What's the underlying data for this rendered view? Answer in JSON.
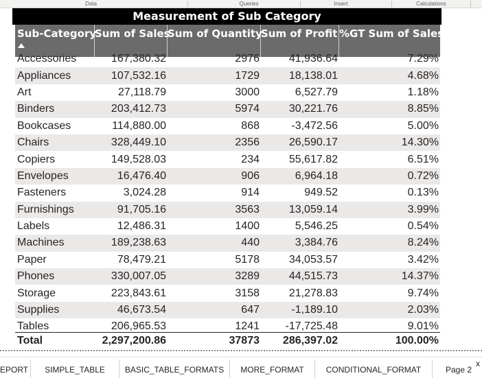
{
  "ribbon": {
    "groups": [
      {
        "label": "Data"
      },
      {
        "label": "Queries"
      },
      {
        "label": "Insert"
      },
      {
        "label": "Calculations"
      }
    ]
  },
  "table": {
    "title": "Measurement of Sub Category",
    "columns": [
      "Sub-Category",
      "Sum of Sales",
      "Sum of Quantity",
      "Sum of Profit",
      "%GT Sum of Sales"
    ],
    "sort_column": "Sub-Category",
    "sort_direction": "ascending",
    "rows": [
      [
        "Accessories",
        "167,380.32",
        "2976",
        "41,936.64",
        "7.29%"
      ],
      [
        "Appliances",
        "107,532.16",
        "1729",
        "18,138.01",
        "4.68%"
      ],
      [
        "Art",
        "27,118.79",
        "3000",
        "6,527.79",
        "1.18%"
      ],
      [
        "Binders",
        "203,412.73",
        "5974",
        "30,221.76",
        "8.85%"
      ],
      [
        "Bookcases",
        "114,880.00",
        "868",
        "-3,472.56",
        "5.00%"
      ],
      [
        "Chairs",
        "328,449.10",
        "2356",
        "26,590.17",
        "14.30%"
      ],
      [
        "Copiers",
        "149,528.03",
        "234",
        "55,617.82",
        "6.51%"
      ],
      [
        "Envelopes",
        "16,476.40",
        "906",
        "6,964.18",
        "0.72%"
      ],
      [
        "Fasteners",
        "3,024.28",
        "914",
        "949.52",
        "0.13%"
      ],
      [
        "Furnishings",
        "91,705.16",
        "3563",
        "13,059.14",
        "3.99%"
      ],
      [
        "Labels",
        "12,486.31",
        "1400",
        "5,546.25",
        "0.54%"
      ],
      [
        "Machines",
        "189,238.63",
        "440",
        "3,384.76",
        "8.24%"
      ],
      [
        "Paper",
        "78,479.21",
        "5178",
        "34,053.57",
        "3.42%"
      ],
      [
        "Phones",
        "330,007.05",
        "3289",
        "44,515.73",
        "14.37%"
      ],
      [
        "Storage",
        "223,843.61",
        "3158",
        "21,278.83",
        "9.74%"
      ],
      [
        "Supplies",
        "46,673.54",
        "647",
        "-1,189.10",
        "2.03%"
      ],
      [
        "Tables",
        "206,965.53",
        "1241",
        "-17,725.48",
        "9.01%"
      ]
    ],
    "total": [
      "Total",
      "2,297,200.86",
      "37873",
      "286,397.02",
      "100.00%"
    ]
  },
  "page_tabs": [
    {
      "label": "EPORT"
    },
    {
      "label": "SIMPLE_TABLE"
    },
    {
      "label": "BASIC_TABLE_FORMATS"
    },
    {
      "label": "MORE_FORMAT"
    },
    {
      "label": "CONDITIONAL_FORMAT"
    },
    {
      "label": "Page 2"
    }
  ],
  "close_symbol": "x",
  "colors": {
    "title_bg": "#000000",
    "header_bg": "#6b6b6b",
    "alt_row_bg": "#ebe9e8"
  }
}
